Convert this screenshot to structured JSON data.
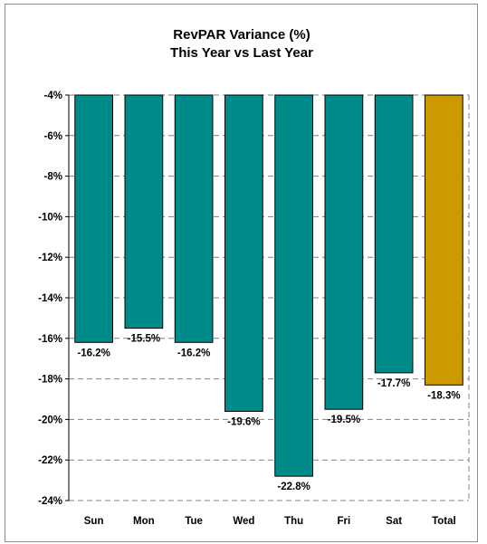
{
  "chart_data": {
    "type": "bar",
    "title": "RevPAR Variance (%)",
    "subtitle": "This Year vs Last Year",
    "categories": [
      "Sun",
      "Mon",
      "Tue",
      "Wed",
      "Thu",
      "Fri",
      "Sat",
      "Total"
    ],
    "values": [
      -16.2,
      -15.5,
      -16.2,
      -19.6,
      -22.8,
      -19.5,
      -17.7,
      -18.3
    ],
    "data_labels": [
      "-16.2%",
      "-15.5%",
      "-16.2%",
      "-19.6%",
      "-22.8%",
      "-19.5%",
      "-17.7%",
      "-18.3%"
    ],
    "ylim": [
      -24,
      -4
    ],
    "yticks": [
      -4,
      -6,
      -8,
      -10,
      -12,
      -14,
      -16,
      -18,
      -20,
      -22,
      -24
    ],
    "ytick_labels": [
      "-4%",
      "-6%",
      "-8%",
      "-10%",
      "-12%",
      "-14%",
      "-16%",
      "-18%",
      "-20%",
      "-22%",
      "-24%"
    ],
    "grid": true,
    "bars_hang_from": -4,
    "colors": {
      "bar": "#008B8B",
      "total_bar": "#CC9900",
      "grid": "#808080"
    }
  }
}
